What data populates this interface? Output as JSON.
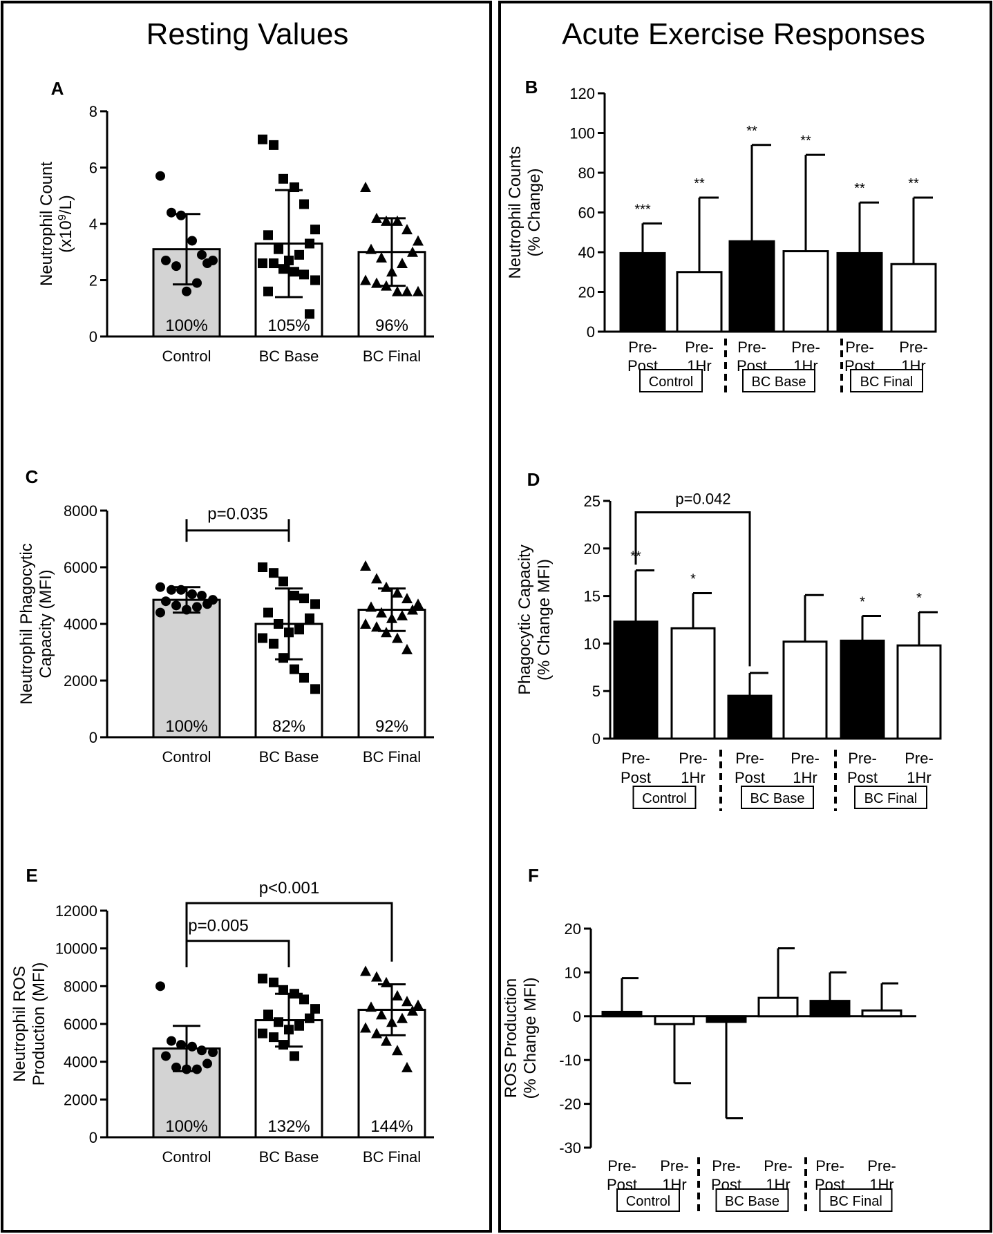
{
  "figure": {
    "left_title": "Resting Values",
    "right_title": "Acute Exercise Responses"
  },
  "colors": {
    "control_fill": "#d3d3d3",
    "bc_fill": "#ffffff",
    "prepost_fill": "#000000",
    "pre1hr_fill": "#ffffff",
    "ink": "#000000"
  },
  "chart_data": [
    {
      "panel": "A",
      "type": "bar",
      "ylabel_lines": [
        "Neutrophil Count",
        "(x10^9/L)"
      ],
      "ylim": [
        0,
        8
      ],
      "yticks": [
        0,
        2,
        4,
        6,
        8
      ],
      "categories": [
        "Control",
        "BC Base",
        "BC Final"
      ],
      "values": [
        3.1,
        3.3,
        3.0
      ],
      "sd": [
        1.25,
        1.9,
        1.2
      ],
      "percent_labels": [
        "100%",
        "105%",
        "96%"
      ],
      "markers": [
        "circle",
        "square",
        "triangle"
      ],
      "points": [
        [
          5.7,
          4.4,
          4.3,
          3.4,
          2.9,
          2.7,
          2.7,
          2.6,
          2.5,
          1.9,
          1.6
        ],
        [
          7.0,
          6.8,
          5.6,
          5.3,
          4.7,
          3.8,
          3.6,
          3.3,
          3.1,
          2.9,
          2.7,
          2.6,
          2.6,
          2.4,
          2.3,
          2.2,
          2.0,
          1.6,
          0.8
        ],
        [
          5.3,
          4.2,
          4.1,
          4.1,
          3.8,
          3.4,
          3.1,
          3.0,
          2.8,
          2.6,
          2.3,
          2.0,
          1.9,
          1.8,
          1.6,
          1.6,
          1.6
        ]
      ],
      "significance": []
    },
    {
      "panel": "B",
      "type": "bar",
      "ylabel_lines": [
        "Neutrophil Counts",
        "(% Change)"
      ],
      "ylim": [
        0,
        120
      ],
      "yticks": [
        0,
        20,
        40,
        60,
        80,
        100,
        120
      ],
      "bar_labels": [
        "Pre-Post",
        "Pre-1Hr",
        "Pre-Post",
        "Pre-1Hr",
        "Pre-Post",
        "Pre-1Hr"
      ],
      "groups": [
        "Control",
        "BC Base",
        "BC Final"
      ],
      "values": [
        39.5,
        30,
        45.5,
        40.5,
        39.5,
        34
      ],
      "sd": [
        15,
        37.5,
        48.5,
        48.5,
        25.5,
        33.5
      ],
      "stars": [
        "***",
        "**",
        "**",
        "**",
        "**",
        "**"
      ],
      "significance": []
    },
    {
      "panel": "C",
      "type": "bar",
      "ylabel_lines": [
        "Neutrophil Phagocytic",
        "Capacity (MFI)"
      ],
      "ylim": [
        0,
        8000
      ],
      "yticks": [
        0,
        2000,
        4000,
        6000,
        8000
      ],
      "categories": [
        "Control",
        "BC Base",
        "BC Final"
      ],
      "values": [
        4850,
        4000,
        4500
      ],
      "sd": [
        450,
        1250,
        750
      ],
      "percent_labels": [
        "100%",
        "82%",
        "92%"
      ],
      "markers": [
        "circle",
        "square",
        "triangle"
      ],
      "points": [
        [
          5300,
          5200,
          5200,
          5050,
          5000,
          4850,
          4800,
          4700,
          4650,
          4600,
          4500,
          4400
        ],
        [
          6000,
          5800,
          5500,
          5000,
          4900,
          4700,
          4400,
          4200,
          4000,
          3800,
          3700,
          3500,
          3300,
          2800,
          2400,
          2100,
          1700
        ],
        [
          6050,
          5600,
          5300,
          5100,
          4900,
          4700,
          4600,
          4500,
          4400,
          4300,
          4200,
          4000,
          3900,
          3700,
          3500,
          3100
        ]
      ],
      "significance": [
        {
          "from": 0,
          "to": 1,
          "label": "p=0.035"
        }
      ]
    },
    {
      "panel": "D",
      "type": "bar",
      "ylabel_lines": [
        "Phagocytic  Capacity",
        "(% Change MFI)"
      ],
      "ylim": [
        0,
        25
      ],
      "yticks": [
        0,
        5,
        10,
        15,
        20,
        25
      ],
      "bar_labels": [
        "Pre-Post",
        "Pre-1Hr",
        "Pre-Post",
        "Pre-1Hr",
        "Pre-Post",
        "Pre-1Hr"
      ],
      "groups": [
        "Control",
        "BC Base",
        "BC Final"
      ],
      "values": [
        12.3,
        11.6,
        4.5,
        10.2,
        10.3,
        9.8
      ],
      "sd": [
        5.4,
        3.7,
        2.4,
        4.9,
        2.6,
        3.5
      ],
      "stars": [
        "**",
        "*",
        "",
        "",
        "*",
        "*"
      ],
      "significance": [
        {
          "from": 0,
          "to": 2,
          "label": "p=0.042"
        }
      ]
    },
    {
      "panel": "E",
      "type": "bar",
      "ylabel_lines": [
        "Neutrophil ROS",
        "Production (MFI)"
      ],
      "ylim": [
        0,
        12000
      ],
      "yticks": [
        0,
        2000,
        4000,
        6000,
        8000,
        10000,
        12000
      ],
      "categories": [
        "Control",
        "BC Base",
        "BC Final"
      ],
      "values": [
        4700,
        6200,
        6750
      ],
      "sd": [
        1200,
        1400,
        1350
      ],
      "percent_labels": [
        "100%",
        "132%",
        "144%"
      ],
      "markers": [
        "circle",
        "square",
        "triangle"
      ],
      "points": [
        [
          8000,
          5100,
          4900,
          4800,
          4600,
          4500,
          4300,
          3900,
          3700,
          3600,
          3600
        ],
        [
          8400,
          8200,
          7800,
          7600,
          7300,
          6800,
          6500,
          6300,
          6100,
          5900,
          5700,
          5500,
          5300,
          4900,
          4300
        ],
        [
          8800,
          8500,
          8200,
          7500,
          7200,
          7000,
          6900,
          6700,
          6500,
          6300,
          6100,
          5800,
          5500,
          5100,
          4600,
          3700
        ]
      ],
      "significance": [
        {
          "from": 0,
          "to": 1,
          "label": "p=0.005"
        },
        {
          "from": 0,
          "to": 2,
          "label": "p<0.001"
        }
      ]
    },
    {
      "panel": "F",
      "type": "bar",
      "ylabel_lines": [
        "ROS Production",
        "(% Change MFI)"
      ],
      "ylim": [
        -30,
        20
      ],
      "yticks": [
        -30,
        -20,
        -10,
        0,
        10,
        20
      ],
      "bar_labels": [
        "Pre-Post",
        "Pre-1Hr",
        "Pre-Post",
        "Pre-1Hr",
        "Pre-Post",
        "Pre-1Hr"
      ],
      "groups": [
        "Control",
        "BC Base",
        "BC Final"
      ],
      "values": [
        1,
        -1.8,
        -1.3,
        4.2,
        3.5,
        1.3
      ],
      "sd": [
        7.7,
        13.5,
        22,
        11.3,
        6.5,
        6.2
      ],
      "stars": [
        "",
        "",
        "",
        "",
        "",
        ""
      ],
      "significance": []
    }
  ]
}
